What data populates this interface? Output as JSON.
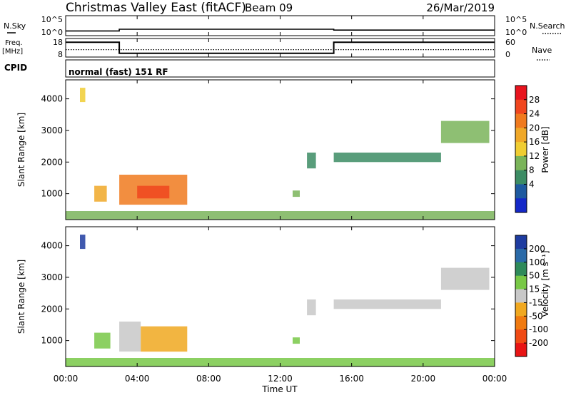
{
  "header": {
    "title": "Christmas Valley East (fitACF)",
    "beam": "Beam 09",
    "date": "26/Mar/2019"
  },
  "strip_labels": {
    "nsky": "N.Sky",
    "nsearch": "N.Search",
    "freq_top": "Freq.",
    "freq_unit": "[MHz]",
    "nave": "Nave",
    "cpid": "CPID",
    "cpid_value": "normal (fast) 151 RF",
    "noise_ticks_left": [
      "10^5",
      "10^0"
    ],
    "noise_ticks_right": [
      "10^5",
      "10^0"
    ],
    "freq_ticks": [
      "18",
      "8"
    ],
    "nave_ticks": [
      "60",
      "0"
    ]
  },
  "x_axis": {
    "label": "Time UT",
    "ticks": [
      "00:00",
      "04:00",
      "08:00",
      "12:00",
      "16:00",
      "20:00",
      "00:00"
    ]
  },
  "colorbars": {
    "power": {
      "label": "Power [dB]",
      "ticks": [
        "28",
        "24",
        "20",
        "16",
        "12",
        "8",
        "4"
      ],
      "colors": [
        "#e8141e",
        "#f0461e",
        "#f07a1e",
        "#f0a828",
        "#f0cd32",
        "#7ab45a",
        "#3c8c64",
        "#1e5aa0",
        "#1428c8"
      ]
    },
    "velocity": {
      "label": "Velocity [m s⁻¹]",
      "ticks": [
        "200",
        "100",
        "50",
        "15",
        "-15",
        "-50",
        "-100",
        "-200"
      ],
      "colors": [
        "#1e3ca0",
        "#2a6aa8",
        "#2e8a5a",
        "#78c846",
        "#c8c8c8",
        "#f0a820",
        "#f07a10",
        "#f04a14",
        "#e81414"
      ]
    }
  },
  "chart_data": [
    {
      "type": "line",
      "title": "N.Sky / N.Search",
      "x_range_hours": [
        0,
        24
      ],
      "yscale": "log",
      "ylim": [
        1,
        100000
      ],
      "series": [
        {
          "name": "N.Sky",
          "x": [
            0,
            3,
            3,
            15,
            15,
            24
          ],
          "y": [
            15,
            15,
            40,
            40,
            25,
            25
          ]
        }
      ]
    },
    {
      "type": "line",
      "title": "Freq. / Nave",
      "x_range_hours": [
        0,
        24
      ],
      "ylim_freq": [
        8,
        18
      ],
      "ylim_nave": [
        0,
        60
      ],
      "series": [
        {
          "name": "Freq.",
          "x": [
            0,
            3,
            3,
            15,
            15,
            24
          ],
          "y": [
            16,
            16,
            10,
            10,
            16,
            16
          ]
        },
        {
          "name": "Nave",
          "x": [
            0,
            24
          ],
          "y": [
            24,
            24
          ]
        }
      ]
    },
    {
      "type": "heatmap",
      "title": "Power [dB]",
      "x_range_hours": [
        0,
        24
      ],
      "ylabel": "Slant Range [km]",
      "ylim": [
        180,
        4600
      ],
      "yticks": [
        1000,
        2000,
        3000,
        4000
      ],
      "regions": [
        {
          "t0": 0.8,
          "t1": 1.1,
          "r0": 3900,
          "r1": 4350,
          "value": 14
        },
        {
          "t0": 1.6,
          "t1": 2.3,
          "r0": 750,
          "r1": 1250,
          "value": 18
        },
        {
          "t0": 3.0,
          "t1": 6.8,
          "r0": 650,
          "r1": 1600,
          "value": 22
        },
        {
          "t0": 4.0,
          "t1": 5.8,
          "r0": 850,
          "r1": 1250,
          "value": 28
        },
        {
          "t0": 12.7,
          "t1": 13.1,
          "r0": 900,
          "r1": 1100,
          "value": 10
        },
        {
          "t0": 13.5,
          "t1": 14.0,
          "r0": 1800,
          "r1": 2300,
          "value": 8
        },
        {
          "t0": 15.0,
          "t1": 21.0,
          "r0": 2000,
          "r1": 2300,
          "value": 7
        },
        {
          "t0": 21.0,
          "t1": 23.7,
          "r0": 2600,
          "r1": 3300,
          "value": 10
        },
        {
          "t0": 0.0,
          "t1": 24.0,
          "r0": 180,
          "r1": 450,
          "value": 12
        }
      ]
    },
    {
      "type": "heatmap",
      "title": "Velocity [m s⁻¹]",
      "x_range_hours": [
        0,
        24
      ],
      "ylabel": "Slant Range [km]",
      "ylim": [
        180,
        4600
      ],
      "yticks": [
        1000,
        2000,
        3000,
        4000
      ],
      "regions": [
        {
          "t0": 0.8,
          "t1": 1.1,
          "r0": 3900,
          "r1": 4350,
          "value": 200
        },
        {
          "t0": 1.6,
          "t1": 2.5,
          "r0": 750,
          "r1": 1250,
          "value": 40
        },
        {
          "t0": 3.0,
          "t1": 4.2,
          "r0": 650,
          "r1": 1600,
          "value": 0
        },
        {
          "t0": 4.2,
          "t1": 6.8,
          "r0": 650,
          "r1": 1450,
          "value": -40
        },
        {
          "t0": 12.7,
          "t1": 13.1,
          "r0": 900,
          "r1": 1100,
          "value": 40
        },
        {
          "t0": 13.5,
          "t1": 14.0,
          "r0": 1800,
          "r1": 2300,
          "value": 0
        },
        {
          "t0": 15.0,
          "t1": 21.0,
          "r0": 2000,
          "r1": 2300,
          "value": 0
        },
        {
          "t0": 21.0,
          "t1": 23.7,
          "r0": 2600,
          "r1": 3300,
          "value": 0
        },
        {
          "t0": 0.0,
          "t1": 24.0,
          "r0": 180,
          "r1": 450,
          "value": 30
        }
      ]
    }
  ]
}
